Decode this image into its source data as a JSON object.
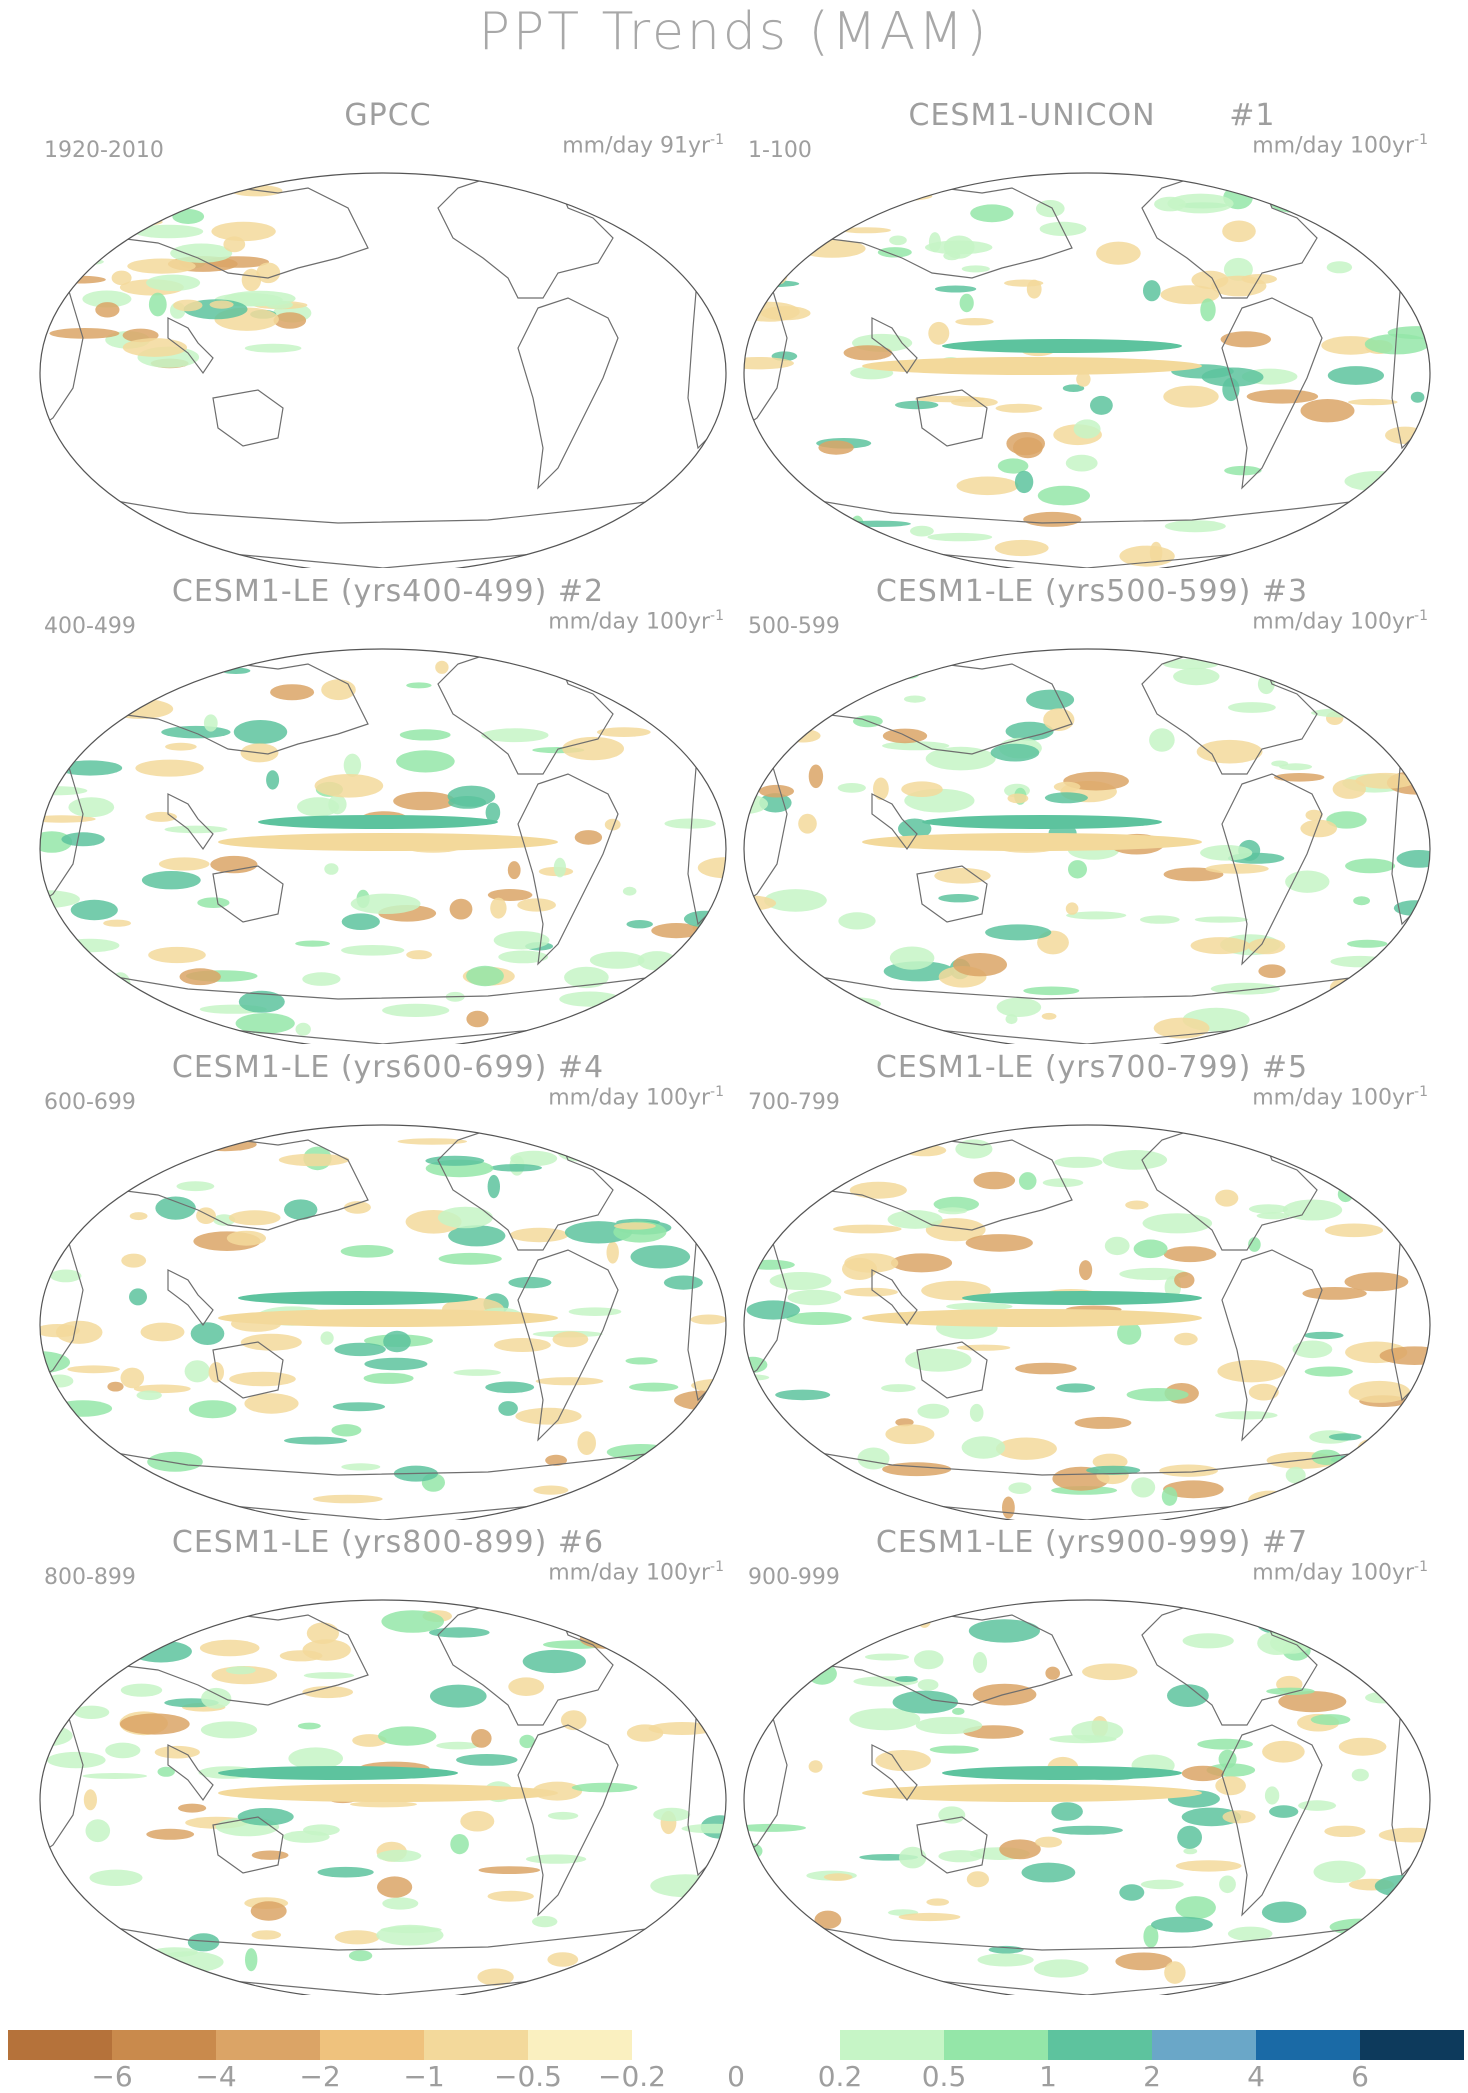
{
  "title": "PPT Trends (MAM)",
  "panels": [
    {
      "title": "GPCC",
      "period": "1920-2010",
      "units": "mm/day 91yr",
      "units_exp": "-1"
    },
    {
      "title": "CESM1-UNICON       #1",
      "period": "1-100",
      "units": "mm/day 100yr",
      "units_exp": "-1"
    },
    {
      "title": "CESM1-LE (yrs400-499) #2",
      "period": "400-499",
      "units": "mm/day 100yr",
      "units_exp": "-1"
    },
    {
      "title": "CESM1-LE (yrs500-599) #3",
      "period": "500-599",
      "units": "mm/day 100yr",
      "units_exp": "-1"
    },
    {
      "title": "CESM1-LE (yrs600-699) #4",
      "period": "600-699",
      "units": "mm/day 100yr",
      "units_exp": "-1"
    },
    {
      "title": "CESM1-LE (yrs700-799) #5",
      "period": "700-799",
      "units": "mm/day 100yr",
      "units_exp": "-1"
    },
    {
      "title": "CESM1-LE (yrs800-899) #6",
      "period": "800-899",
      "units": "mm/day 100yr",
      "units_exp": "-1"
    },
    {
      "title": "CESM1-LE (yrs900-999) #7",
      "period": "900-999",
      "units": "mm/day 100yr",
      "units_exp": "-1"
    }
  ],
  "legend": {
    "colors": [
      "#b5723a",
      "#c98a4c",
      "#dba466",
      "#efc27d",
      "#f3d99b",
      "#faf0c0",
      "#ffffff",
      "#ffffff",
      "#c6f5c6",
      "#94e6a8",
      "#5dc39e",
      "#6aa7c8",
      "#1a6aa6",
      "#0d3a5c"
    ],
    "labels": [
      "−6",
      "−4",
      "−2",
      "−1",
      "−0.5",
      "−0.2",
      "0",
      "0.2",
      "0.5",
      "1",
      "2",
      "4",
      "6"
    ]
  },
  "colors": {
    "land_outline": "#6e6e6e",
    "dry_strong": "#dba466",
    "dry_weak": "#f3d99b",
    "wet_weak": "#c6f5c6",
    "wet_mid": "#94e6a8",
    "wet_strong": "#5dc39e",
    "wet_max": "#6aa7c8"
  }
}
